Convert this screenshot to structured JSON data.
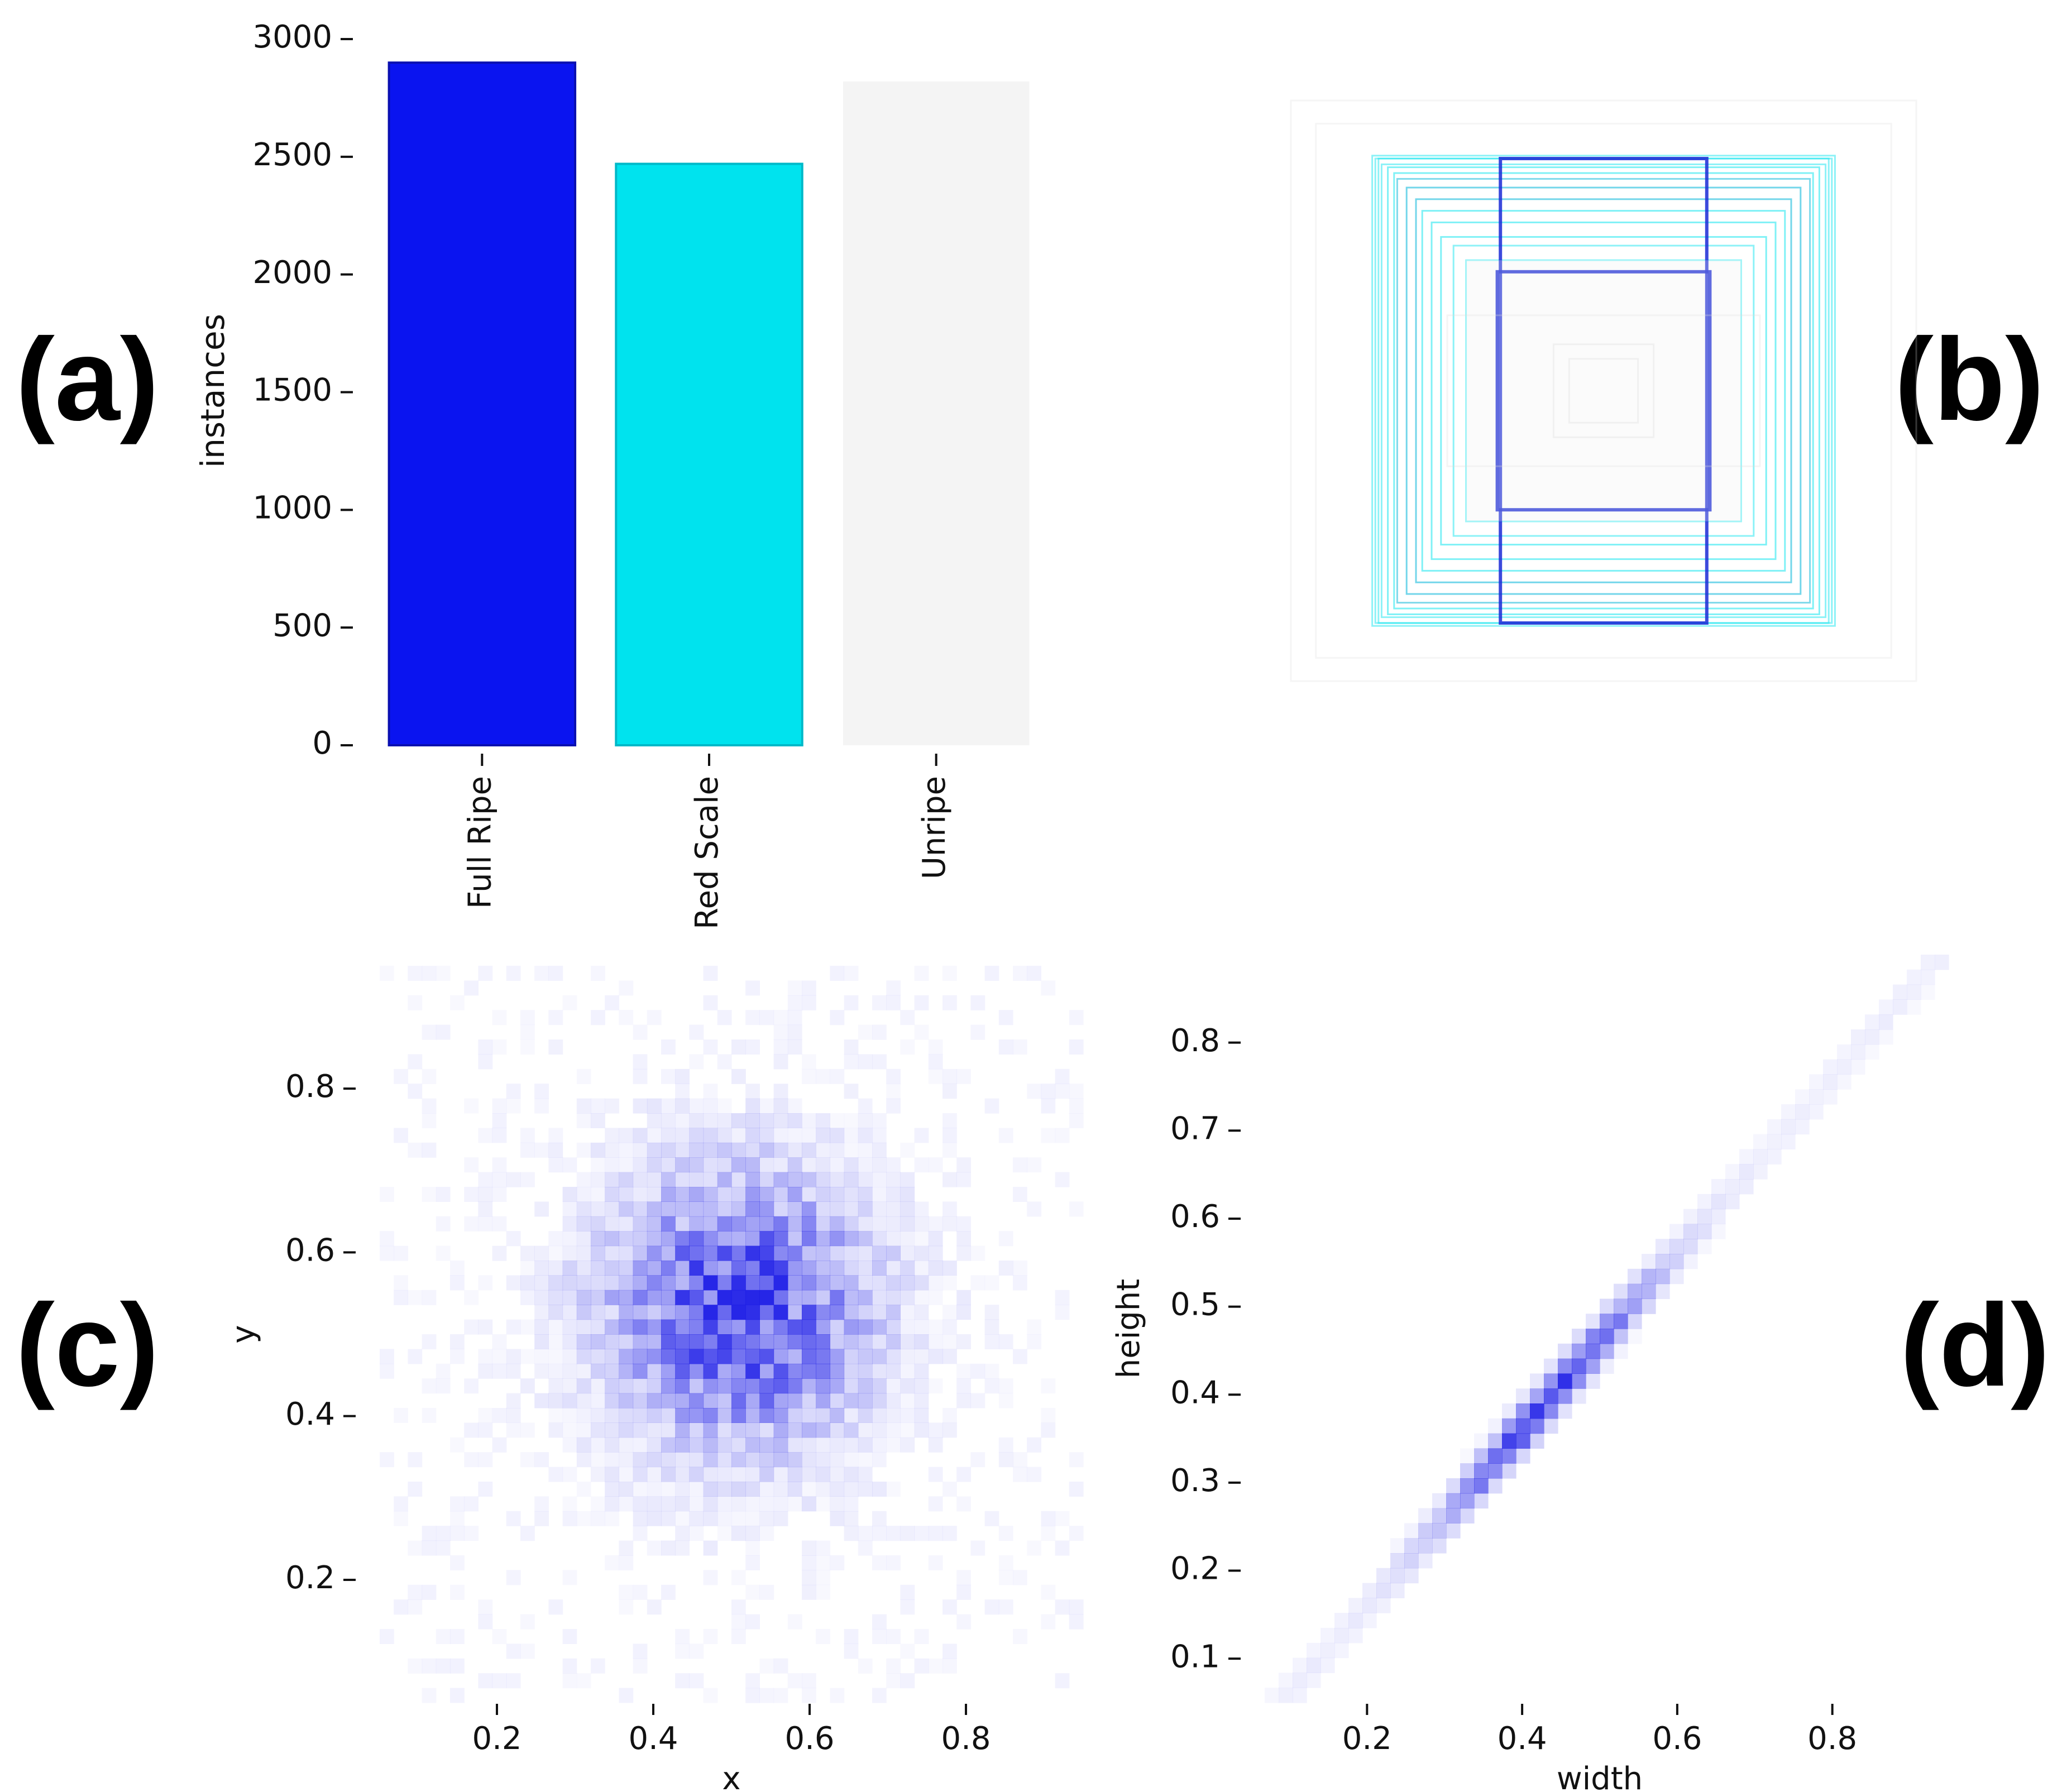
{
  "panels": {
    "a": {
      "label": "(a)"
    },
    "b": {
      "label": "(b)"
    },
    "c": {
      "label": "(c)"
    },
    "d": {
      "label": "(d)"
    }
  },
  "colors": {
    "full_ripe": "#0a14f0",
    "red_scale": "#00e3ee",
    "unripe": "#f4f4f4",
    "heat": "#1a1ae6"
  },
  "chart_data": [
    {
      "id": "a",
      "type": "bar",
      "categories": [
        "Full Ripe",
        "Red Scale",
        "Unripe"
      ],
      "values": [
        2900,
        2470,
        2820
      ],
      "ylabel": "instances",
      "xlabel": "",
      "ylim": [
        0,
        3000
      ],
      "yticks": [
        0,
        500,
        1000,
        1500,
        2000,
        2500,
        3000
      ],
      "ytick_labels": [
        "0",
        "500",
        "1000",
        "1500",
        "2000",
        "2500",
        "3000"
      ]
    },
    {
      "id": "b",
      "type": "other",
      "title": "",
      "boxes": [
        {
          "w": 0.74,
          "h": 0.81,
          "color": "#00e3ee",
          "a": 0.45
        },
        {
          "w": 0.73,
          "h": 0.8,
          "color": "#00e3ee",
          "a": 0.45
        },
        {
          "w": 0.72,
          "h": 0.8,
          "color": "#00e3ee",
          "a": 0.45
        },
        {
          "w": 0.71,
          "h": 0.78,
          "color": "#00e3ee",
          "a": 0.45
        },
        {
          "w": 0.69,
          "h": 0.77,
          "color": "#00e3ee",
          "a": 0.5
        },
        {
          "w": 0.67,
          "h": 0.75,
          "color": "#00e3ee",
          "a": 0.5
        },
        {
          "w": 0.66,
          "h": 0.73,
          "color": "#00b4d8",
          "a": 0.5
        },
        {
          "w": 0.63,
          "h": 0.7,
          "color": "#00b4d8",
          "a": 0.55
        },
        {
          "w": 0.6,
          "h": 0.66,
          "color": "#00b4d8",
          "a": 0.55
        },
        {
          "w": 0.58,
          "h": 0.62,
          "color": "#00e3ee",
          "a": 0.5
        },
        {
          "w": 0.55,
          "h": 0.58,
          "color": "#00e3ee",
          "a": 0.5
        },
        {
          "w": 0.52,
          "h": 0.53,
          "color": "#00e3ee",
          "a": 0.5
        },
        {
          "w": 0.48,
          "h": 0.5,
          "color": "#00e3ee",
          "a": 0.45
        },
        {
          "w": 0.44,
          "h": 0.45,
          "color": "#00e3ee",
          "a": 0.4
        },
        {
          "w": 0.33,
          "h": 0.8,
          "color": "#1a2ad6",
          "a": 0.85
        },
        {
          "w": 0.34,
          "h": 0.41,
          "color": "#1a2ad6",
          "a": 0.9
        },
        {
          "w": 1.0,
          "h": 1.0,
          "color": "#d8d8d8",
          "a": 0.25
        },
        {
          "w": 0.92,
          "h": 0.92,
          "color": "#d8d8d8",
          "a": 0.25
        },
        {
          "w": 0.5,
          "h": 0.26,
          "color": "#dcdcdc",
          "a": 0.3
        },
        {
          "w": 0.16,
          "h": 0.16,
          "color": "#dcdcdc",
          "a": 0.4
        },
        {
          "w": 0.11,
          "h": 0.11,
          "color": "#dcdcdc",
          "a": 0.4
        }
      ]
    },
    {
      "id": "c",
      "type": "heatmap",
      "xlabel": "x",
      "ylabel": "y",
      "xlim": [
        0.05,
        0.95
      ],
      "ylim": [
        0.05,
        0.95
      ],
      "xticks": [
        0.2,
        0.4,
        0.6,
        0.8
      ],
      "yticks": [
        0.2,
        0.4,
        0.6,
        0.8
      ],
      "xtick_labels": [
        "0.2",
        "0.4",
        "0.6",
        "0.8"
      ],
      "ytick_labels": [
        "0.2",
        "0.4",
        "0.6",
        "0.8"
      ],
      "bins": 50,
      "center": [
        0.51,
        0.53
      ],
      "spread": [
        0.11,
        0.11
      ]
    },
    {
      "id": "d",
      "type": "heatmap",
      "xlabel": "width",
      "ylabel": "height",
      "xlim": [
        0.05,
        0.95
      ],
      "ylim": [
        0.05,
        0.9
      ],
      "xticks": [
        0.2,
        0.4,
        0.6,
        0.8
      ],
      "yticks": [
        0.1,
        0.2,
        0.3,
        0.4,
        0.5,
        0.6,
        0.7,
        0.8
      ],
      "xtick_labels": [
        "0.2",
        "0.4",
        "0.6",
        "0.8"
      ],
      "ytick_labels": [
        "0.1",
        "0.2",
        "0.3",
        "0.4",
        "0.5",
        "0.6",
        "0.7",
        "0.8"
      ],
      "bins": 50,
      "trend": {
        "slope": 1.0,
        "intercept": -0.04,
        "peak": 0.43,
        "spread": 0.09
      }
    }
  ]
}
